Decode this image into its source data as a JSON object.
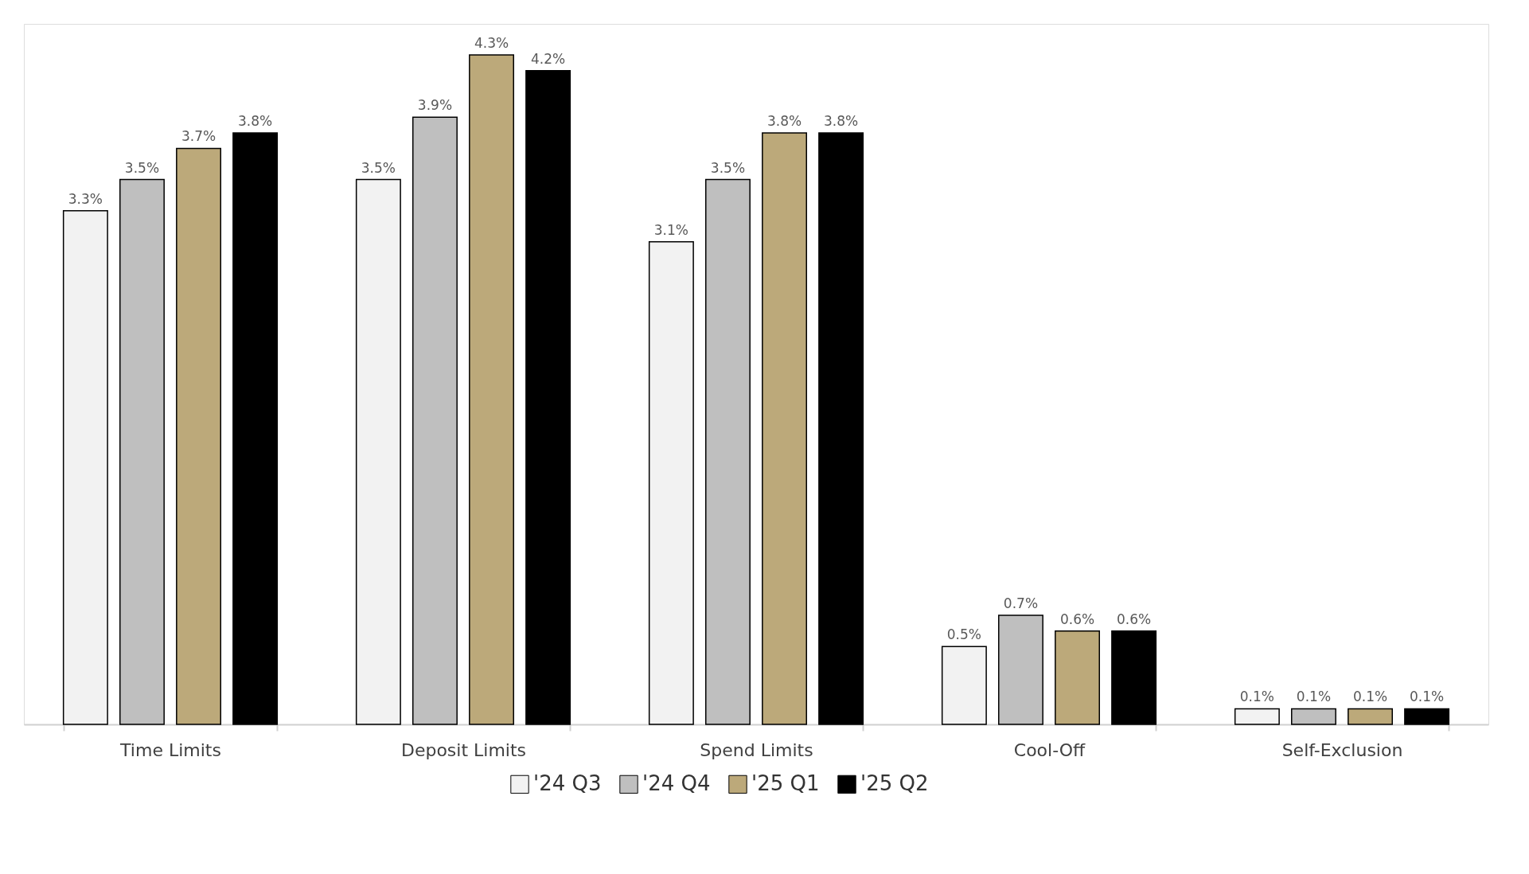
{
  "chart_data": {
    "type": "bar",
    "categories": [
      "Time Limits",
      "Deposit Limits",
      "Spend Limits",
      "Cool-Off",
      "Self-Exclusion"
    ],
    "series": [
      {
        "name": "'24 Q3",
        "color": "#f2f2f2",
        "values": [
          3.3,
          3.5,
          3.1,
          0.5,
          0.1
        ],
        "value_labels": [
          "3.3%",
          "3.5%",
          "3.1%",
          "0.5%",
          "0.1%"
        ]
      },
      {
        "name": "'24 Q4",
        "color": "#bfbfbf",
        "values": [
          3.5,
          3.9,
          3.5,
          0.7,
          0.1
        ],
        "value_labels": [
          "3.5%",
          "3.9%",
          "3.5%",
          "0.7%",
          "0.1%"
        ]
      },
      {
        "name": "'25 Q1",
        "color": "#bca97a",
        "values": [
          3.7,
          4.3,
          3.8,
          0.6,
          0.1
        ],
        "value_labels": [
          "3.7%",
          "4.3%",
          "3.8%",
          "0.6%",
          "0.1%"
        ]
      },
      {
        "name": "'25 Q2",
        "color": "#000000",
        "values": [
          3.8,
          4.2,
          3.8,
          0.6,
          0.1
        ],
        "value_labels": [
          "3.8%",
          "4.2%",
          "3.8%",
          "0.6%",
          "0.1%"
        ]
      }
    ],
    "legend": "bottom"
  }
}
